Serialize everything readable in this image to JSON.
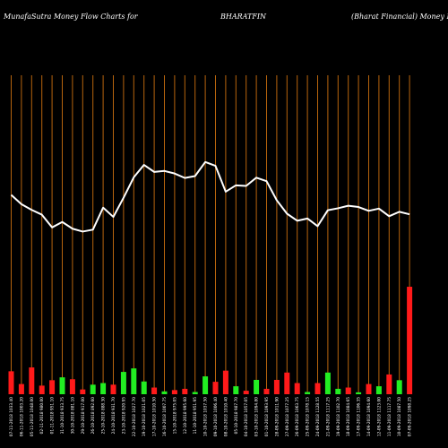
{
  "header": {
    "brand": "MunafaSutra  Money Flow  Charts for",
    "symbol": "BHARATFIN",
    "company": "(Bharat Financial) Money Flow"
  },
  "colors": {
    "background": "#000000",
    "gridline": "#b8650d",
    "inflow": "#22ee22",
    "outflow": "#ff1a1a",
    "line": "#ffffff",
    "text": "#ffffff"
  },
  "chart_data": {
    "type": "bar",
    "title": "",
    "xlabel": "",
    "ylabel": "",
    "grid": true,
    "categories": [
      "07-11-2018 1033.40",
      "06-11-2018 1003.20",
      "05-11-2018 1048.00",
      "02-11-2018 980.00",
      "01-11-2018 951.10",
      "31-10-2018 933.75",
      "30-10-2018 881.10",
      "29-10-2018 917.00",
      "26-10-2018 892.60",
      "25-10-2018 888.30",
      "24-10-2018 931.70",
      "23-10-2018 920.95",
      "22-10-2018 1027.70",
      "19-10-2018 1021.05",
      "17-10-2018 1010.50",
      "16-10-2018 1007.75",
      "15-10-2018 975.05",
      "12-10-2018 995.60",
      "11-10-2018 951.95",
      "10-10-2018 1037.50",
      "09-10-2018 1006.40",
      "08-10-2018 1010.40",
      "05-10-2018 987.70",
      "04-10-2018 1057.05",
      "03-10-2018 1094.80",
      "01-10-2018 1093.95",
      "28-09-2018 1011.90",
      "27-09-2018 1077.25",
      "26-09-2018 1063.75",
      "25-09-2018 1078.15",
      "24-09-2018 1128.55",
      "21-09-2018 1117.25",
      "19-09-2018 1102.70",
      "18-09-2018 1084.65",
      "17-09-2018 1106.35",
      "14-09-2018 1094.60",
      "12-09-2018 1123.00",
      "11-09-2018 1117.75",
      "10-09-2018 1087.50",
      "07-09-2018 1098.25"
    ],
    "ylim": [
      0,
      100
    ],
    "bars": [
      {
        "value": 7.2,
        "direction": "out"
      },
      {
        "value": 3.2,
        "direction": "out"
      },
      {
        "value": 8.4,
        "direction": "out"
      },
      {
        "value": 2.7,
        "direction": "out"
      },
      {
        "value": 4.4,
        "direction": "out"
      },
      {
        "value": 5.3,
        "direction": "in"
      },
      {
        "value": 4.7,
        "direction": "out"
      },
      {
        "value": 1.5,
        "direction": "out"
      },
      {
        "value": 3.0,
        "direction": "in"
      },
      {
        "value": 3.5,
        "direction": "in"
      },
      {
        "value": 3.0,
        "direction": "out"
      },
      {
        "value": 7.0,
        "direction": "in"
      },
      {
        "value": 8.1,
        "direction": "in"
      },
      {
        "value": 4.0,
        "direction": "in"
      },
      {
        "value": 2.1,
        "direction": "out"
      },
      {
        "value": 0.9,
        "direction": "in"
      },
      {
        "value": 1.3,
        "direction": "out"
      },
      {
        "value": 1.7,
        "direction": "out"
      },
      {
        "value": 0.7,
        "direction": "in"
      },
      {
        "value": 5.6,
        "direction": "in"
      },
      {
        "value": 3.9,
        "direction": "out"
      },
      {
        "value": 7.4,
        "direction": "out"
      },
      {
        "value": 2.5,
        "direction": "in"
      },
      {
        "value": 1.1,
        "direction": "out"
      },
      {
        "value": 4.5,
        "direction": "in"
      },
      {
        "value": 1.7,
        "direction": "out"
      },
      {
        "value": 4.5,
        "direction": "out"
      },
      {
        "value": 6.8,
        "direction": "out"
      },
      {
        "value": 3.5,
        "direction": "out"
      },
      {
        "value": 0.7,
        "direction": "in"
      },
      {
        "value": 3.5,
        "direction": "out"
      },
      {
        "value": 6.8,
        "direction": "in"
      },
      {
        "value": 1.7,
        "direction": "in"
      },
      {
        "value": 2.1,
        "direction": "out"
      },
      {
        "value": 0.6,
        "direction": "in"
      },
      {
        "value": 3.2,
        "direction": "out"
      },
      {
        "value": 2.5,
        "direction": "in"
      },
      {
        "value": 6.2,
        "direction": "out"
      },
      {
        "value": 4.4,
        "direction": "in"
      },
      {
        "value": 33.7,
        "direction": "out"
      }
    ],
    "line": [
      62.5,
      59.6,
      57.8,
      56.3,
      52.3,
      54.0,
      51.9,
      51.0,
      51.6,
      58.5,
      55.6,
      61.6,
      68.0,
      71.9,
      69.7,
      70.0,
      69.2,
      67.8,
      68.4,
      72.8,
      71.6,
      63.5,
      65.5,
      65.3,
      67.9,
      66.8,
      60.8,
      56.6,
      54.4,
      55.1,
      52.7,
      57.7,
      58.3,
      59.1,
      58.7,
      57.5,
      58.2,
      55.8,
      57.2,
      56.4
    ]
  }
}
